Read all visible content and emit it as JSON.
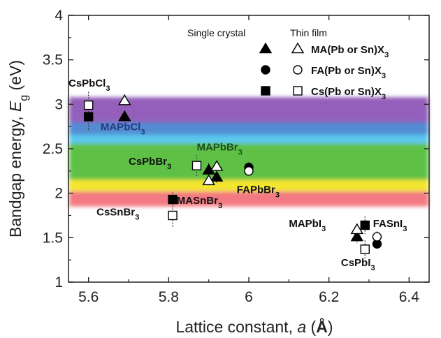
{
  "chart_data": {
    "type": "scatter",
    "xlabel": "Lattice constant, a (Å)",
    "ylabel": "Bandgap energy, Eg (eV)",
    "xlim": [
      5.55,
      6.45
    ],
    "ylim": [
      1.0,
      4.0
    ],
    "xticks": [
      "5.6",
      "5.8",
      "6",
      "6.2",
      "6.4"
    ],
    "yticks": [
      "1",
      "1.5",
      "2",
      "2.5",
      "3",
      "3.5",
      "4"
    ],
    "legend": {
      "header_single": "Single crystal",
      "header_thin": "Thin film",
      "entries": [
        "MA(Pb or Sn)X3",
        "FA(Pb or Sn)X3",
        "Cs(Pb or Sn)X3"
      ]
    },
    "color_bands": [
      {
        "y0": 2.78,
        "y1": 3.08,
        "color": "#8e57b6"
      },
      {
        "y0": 2.62,
        "y1": 2.8,
        "color": "#4c86d1"
      },
      {
        "y0": 2.56,
        "y1": 2.66,
        "color": "#55c6ee"
      },
      {
        "y0": 2.15,
        "y1": 2.56,
        "color": "#55be3c"
      },
      {
        "y0": 2.02,
        "y1": 2.15,
        "color": "#f2e524"
      },
      {
        "y0": 1.85,
        "y1": 2.02,
        "color": "#f2737b"
      }
    ],
    "series": [
      {
        "name": "MA(Pb or Sn)X3",
        "marker": "triangle",
        "single_crystal": [
          {
            "x": 5.69,
            "y": 2.86,
            "err": 0
          },
          {
            "x": 5.9,
            "y": 2.26,
            "err": 0.08
          },
          {
            "x": 5.92,
            "y": 2.18,
            "err": 0.08
          },
          {
            "x": 6.27,
            "y": 1.51,
            "err": 0.08
          }
        ],
        "thin_film": [
          {
            "x": 5.69,
            "y": 3.04,
            "err": 0
          },
          {
            "x": 5.9,
            "y": 2.14,
            "err": 0.06
          },
          {
            "x": 5.92,
            "y": 2.3,
            "err": 0.06
          },
          {
            "x": 6.27,
            "y": 1.59,
            "err": 0.06
          }
        ]
      },
      {
        "name": "FA(Pb or Sn)X3",
        "marker": "circle",
        "single_crystal": [
          {
            "x": 6.0,
            "y": 2.29,
            "err": 0.06
          },
          {
            "x": 6.32,
            "y": 1.43,
            "err": 0.06
          }
        ],
        "thin_film": [
          {
            "x": 6.0,
            "y": 2.25,
            "err": 0.06
          },
          {
            "x": 6.32,
            "y": 1.51,
            "err": 0.06
          }
        ]
      },
      {
        "name": "Cs(Pb or Sn)X3",
        "marker": "square",
        "single_crystal": [
          {
            "x": 5.6,
            "y": 2.86,
            "err": 0.15
          },
          {
            "x": 5.81,
            "y": 1.93,
            "err": 0.08
          },
          {
            "x": 6.29,
            "y": 1.64,
            "err": 0.1
          }
        ],
        "thin_film": [
          {
            "x": 5.6,
            "y": 2.99,
            "err": 0.15
          },
          {
            "x": 5.81,
            "y": 1.75,
            "err": 0.14
          },
          {
            "x": 5.87,
            "y": 2.31,
            "err": 0.12
          },
          {
            "x": 6.29,
            "y": 1.37,
            "err": 0.1
          }
        ]
      }
    ],
    "annotations": [
      {
        "text": "CsPbCl₃",
        "x": 5.55,
        "y": 3.2,
        "color": "#111111"
      },
      {
        "text": "MAPbCl₃",
        "x": 5.63,
        "y": 2.71,
        "color": "#253b7a"
      },
      {
        "text": "CsPbBr₃",
        "x": 5.7,
        "y": 2.32,
        "color": "#111111"
      },
      {
        "text": "MAPbBr₃",
        "x": 5.87,
        "y": 2.48,
        "color": "#1f4f1f"
      },
      {
        "text": "FAPbBr₃",
        "x": 5.97,
        "y": 2.0,
        "color": "#111111"
      },
      {
        "text": "MASnBr₃",
        "x": 5.82,
        "y": 1.88,
        "color": "#111111"
      },
      {
        "text": "CsSnBr₃",
        "x": 5.62,
        "y": 1.75,
        "color": "#111111"
      },
      {
        "text": "MAPbI₃",
        "x": 6.1,
        "y": 1.62,
        "color": "#111111"
      },
      {
        "text": "FASnI₃",
        "x": 6.31,
        "y": 1.62,
        "color": "#111111"
      },
      {
        "text": "CsPbI₃",
        "x": 6.23,
        "y": 1.18,
        "color": "#111111"
      }
    ]
  }
}
